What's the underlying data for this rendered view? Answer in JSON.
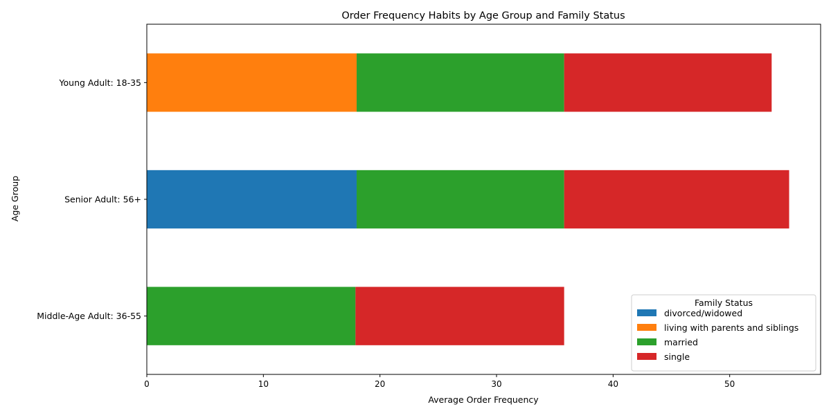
{
  "chart_data": {
    "type": "bar",
    "orientation": "horizontal",
    "stacked": true,
    "title": "Order Frequency Habits by Age Group and Family Status",
    "xlabel": "Average Order Frequency",
    "ylabel": "Age Group",
    "xlim": [
      0,
      57.8
    ],
    "xticks": [
      "0",
      "10",
      "20",
      "30",
      "40",
      "50"
    ],
    "categories": [
      "Middle-Age Adult: 36-55",
      "Senior Adult: 56+",
      "Young Adult: 18-35"
    ],
    "series": [
      {
        "name": "divorced/widowed",
        "color": "#1f77b4",
        "values": [
          0,
          18.0,
          0
        ]
      },
      {
        "name": "living with parents and siblings",
        "color": "#ff7f0e",
        "values": [
          0,
          0,
          18.0
        ]
      },
      {
        "name": "married",
        "color": "#2ca02c",
        "values": [
          17.9,
          17.8,
          17.8
        ]
      },
      {
        "name": "single",
        "color": "#d62728",
        "values": [
          17.9,
          19.3,
          17.8
        ]
      }
    ],
    "legend": {
      "title": "Family Status",
      "position": "lower-right"
    },
    "grid": false
  }
}
